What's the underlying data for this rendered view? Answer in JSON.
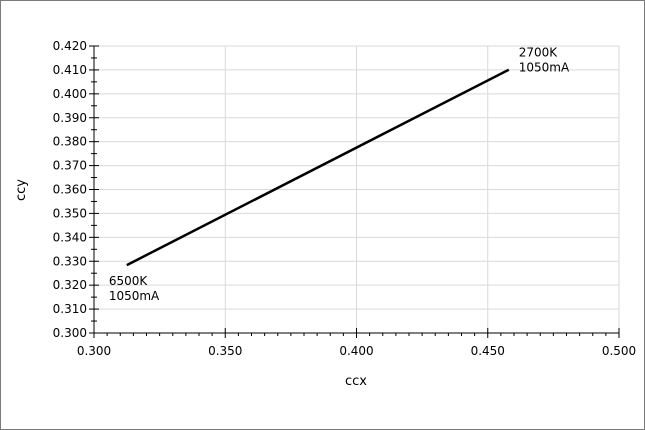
{
  "chart_data": {
    "type": "line",
    "title": "",
    "xlabel": "ccx",
    "ylabel": "ccy",
    "xlim": [
      0.3,
      0.5
    ],
    "ylim": [
      0.3,
      0.42
    ],
    "x_ticks": [
      "0.300",
      "0.350",
      "0.400",
      "0.450",
      "0.500"
    ],
    "y_ticks": [
      "0.300",
      "0.310",
      "0.320",
      "0.330",
      "0.340",
      "0.350",
      "0.360",
      "0.370",
      "0.380",
      "0.390",
      "0.400",
      "0.410",
      "0.420"
    ],
    "grid": true,
    "legend": "none",
    "series": [
      {
        "x": [
          0.3125,
          0.458
        ],
        "y": [
          0.3284,
          0.4101
        ],
        "color": "#000000"
      }
    ],
    "annotations": [
      {
        "lines": [
          "6500K",
          "1050mA"
        ],
        "x": 0.3125,
        "y": 0.3284,
        "placement": "below-left"
      },
      {
        "lines": [
          "2700K",
          "1050mA"
        ],
        "x": 0.458,
        "y": 0.4101,
        "placement": "above-right"
      }
    ]
  }
}
